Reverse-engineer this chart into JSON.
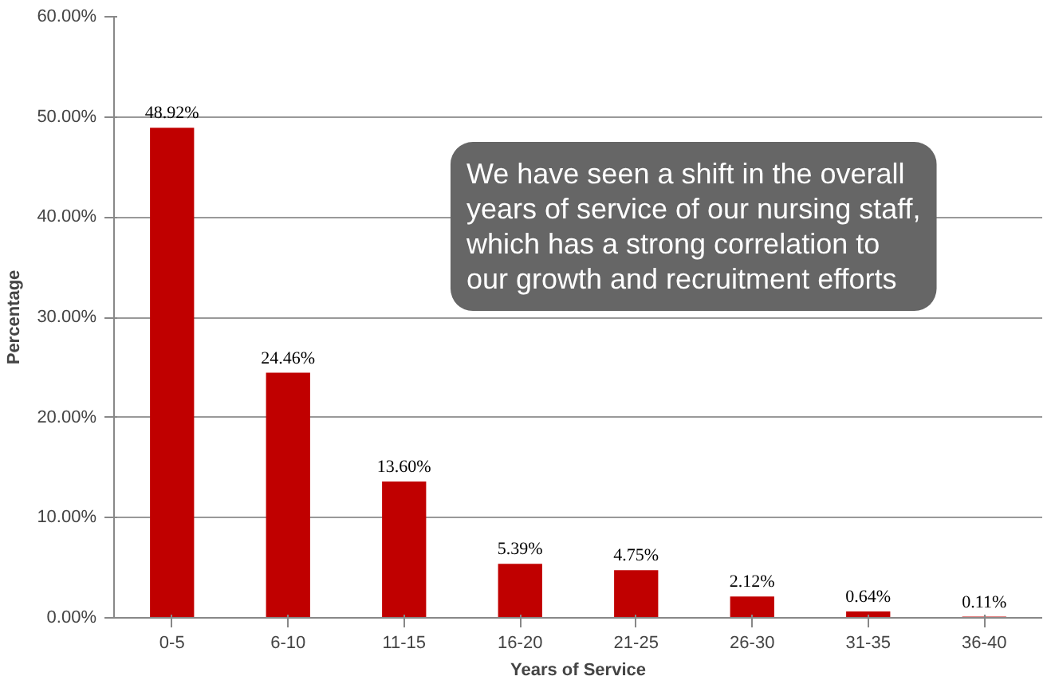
{
  "chart_data": {
    "type": "bar",
    "xlabel": "Years of Service",
    "ylabel": "Percentage",
    "categories": [
      "0-5",
      "6-10",
      "11-15",
      "16-20",
      "21-25",
      "26-30",
      "31-35",
      "36-40"
    ],
    "values": [
      48.92,
      24.46,
      13.6,
      5.39,
      4.75,
      2.12,
      0.64,
      0.11
    ],
    "value_labels": [
      "48.92%",
      "24.46%",
      "13.60%",
      "5.39%",
      "4.75%",
      "2.12%",
      "0.64%",
      "0.11%"
    ],
    "color": "#c00000",
    "ylim": [
      0,
      60
    ],
    "yticks": [
      {
        "value": 0,
        "label": "0.00%"
      },
      {
        "value": 10,
        "label": "10.00%"
      },
      {
        "value": 20,
        "label": "20.00%"
      },
      {
        "value": 30,
        "label": "30.00%"
      },
      {
        "value": 40,
        "label": "40.00%"
      },
      {
        "value": 50,
        "label": "50.00%"
      },
      {
        "value": 60,
        "label": "60.00%"
      }
    ],
    "grid": "y",
    "annotations": [
      "We have seen a shift in the overall\nyears of service of our nursing staff,\nwhich has a strong correlation to\nour growth and recruitment efforts"
    ]
  }
}
